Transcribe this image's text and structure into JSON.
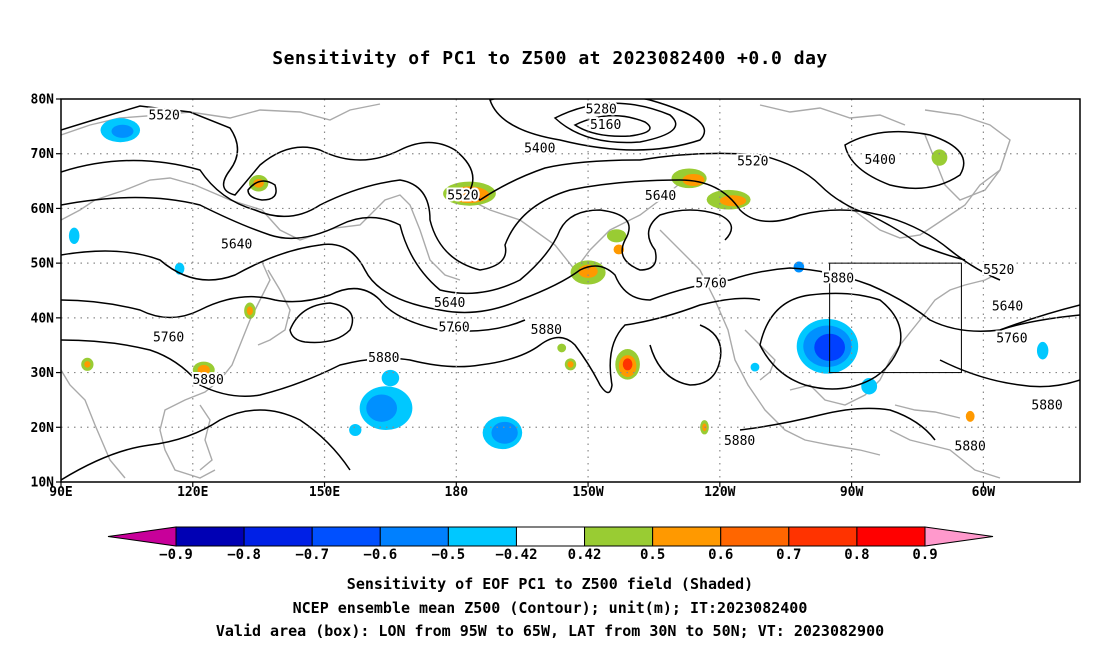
{
  "title": "Sensitivity of PC1 to Z500 at 2023082400 +0.0 day",
  "footer": {
    "line1": "Sensitivity of EOF PC1 to Z500 field (Shaded)",
    "line2": "NCEP ensemble mean Z500 (Contour); unit(m); IT:2023082400",
    "line3": "Valid area (box): LON from 95W to 65W, LAT from 30N to 50N; VT: 2023082900"
  },
  "map": {
    "lat_labels": [
      "80N",
      "70N",
      "60N",
      "50N",
      "40N",
      "30N",
      "20N",
      "10N"
    ],
    "lon_labels": [
      "90E",
      "120E",
      "150E",
      "180",
      "150W",
      "120W",
      "90W",
      "60W"
    ],
    "lon_range": [
      90,
      322
    ],
    "lat_range": [
      10,
      80
    ],
    "valid_box": {
      "lon_from": "95W",
      "lon_to": "65W",
      "lat_from": "30N",
      "lat_to": "50N"
    },
    "contour_labels": [
      {
        "text": "5520",
        "lon": 113.5,
        "lat": 77.1
      },
      {
        "text": "5280",
        "lon": 213,
        "lat": 78.2
      },
      {
        "text": "5160",
        "lon": 214,
        "lat": 75.3
      },
      {
        "text": "5400",
        "lon": 199,
        "lat": 71.0
      },
      {
        "text": "5520",
        "lon": 247.5,
        "lat": 68.7
      },
      {
        "text": "5400",
        "lon": 276.5,
        "lat": 68.9
      },
      {
        "text": "5520",
        "lon": 181.5,
        "lat": 62.5
      },
      {
        "text": "5640",
        "lon": 226.5,
        "lat": 62.4
      },
      {
        "text": "5640",
        "lon": 130,
        "lat": 53.5
      },
      {
        "text": "5880",
        "lon": 267,
        "lat": 47.3
      },
      {
        "text": "5520",
        "lon": 303.5,
        "lat": 48.8
      },
      {
        "text": "5640",
        "lon": 305.5,
        "lat": 42.2
      },
      {
        "text": "5760",
        "lon": 238,
        "lat": 46.4
      },
      {
        "text": "5640",
        "lon": 178.5,
        "lat": 42.8
      },
      {
        "text": "5760",
        "lon": 179.5,
        "lat": 38.3
      },
      {
        "text": "5880",
        "lon": 200.5,
        "lat": 37.9
      },
      {
        "text": "5760",
        "lon": 306.5,
        "lat": 36.3
      },
      {
        "text": "5760",
        "lon": 114.5,
        "lat": 36.5
      },
      {
        "text": "5880",
        "lon": 163.5,
        "lat": 32.8
      },
      {
        "text": "5880",
        "lon": 123.5,
        "lat": 28.7
      },
      {
        "text": "5880",
        "lon": 314.5,
        "lat": 24.1
      },
      {
        "text": "5880",
        "lon": 244.5,
        "lat": 17.6
      },
      {
        "text": "5880",
        "lon": 297,
        "lat": 16.6
      }
    ],
    "shaded_patches": [
      {
        "lon": 103.5,
        "lat": 74.3,
        "rx": 4.5,
        "ry": 2.2,
        "color": "#00c8ff"
      },
      {
        "lon": 104,
        "lat": 74.1,
        "rx": 2.5,
        "ry": 1.2,
        "color": "#0090ff"
      },
      {
        "lon": 135,
        "lat": 64.6,
        "rx": 2.2,
        "ry": 1.5,
        "color": "#99cc33"
      },
      {
        "lon": 135,
        "lat": 64.6,
        "rx": 1.2,
        "ry": 0.8,
        "color": "#ff9900"
      },
      {
        "lon": 183,
        "lat": 62.7,
        "rx": 6,
        "ry": 2.2,
        "color": "#99cc33"
      },
      {
        "lon": 183,
        "lat": 62.5,
        "rx": 4.5,
        "ry": 1.5,
        "color": "#ff9900"
      },
      {
        "lon": 183.5,
        "lat": 62.1,
        "rx": 2,
        "ry": 0.9,
        "color": "#ff6600"
      },
      {
        "lon": 233,
        "lat": 65.5,
        "rx": 4,
        "ry": 1.8,
        "color": "#99cc33"
      },
      {
        "lon": 234,
        "lat": 65.2,
        "rx": 2.5,
        "ry": 1.1,
        "color": "#ff9900"
      },
      {
        "lon": 242,
        "lat": 61.6,
        "rx": 5,
        "ry": 1.8,
        "color": "#99cc33"
      },
      {
        "lon": 243,
        "lat": 61.4,
        "rx": 3,
        "ry": 1.0,
        "color": "#ff9900"
      },
      {
        "lon": 290,
        "lat": 69.3,
        "rx": 1.8,
        "ry": 1.5,
        "color": "#99cc33"
      },
      {
        "lon": 210,
        "lat": 48.3,
        "rx": 4,
        "ry": 2.2,
        "color": "#99cc33"
      },
      {
        "lon": 210,
        "lat": 48.5,
        "rx": 2.2,
        "ry": 1.2,
        "color": "#ff9900"
      },
      {
        "lon": 216.5,
        "lat": 55,
        "rx": 2.2,
        "ry": 1.2,
        "color": "#99cc33"
      },
      {
        "lon": 219,
        "lat": 31.5,
        "rx": 2.8,
        "ry": 2.8,
        "color": "#99cc33"
      },
      {
        "lon": 219,
        "lat": 31.2,
        "rx": 2.0,
        "ry": 2.0,
        "color": "#ff9900"
      },
      {
        "lon": 219,
        "lat": 31.5,
        "rx": 1.1,
        "ry": 1.1,
        "color": "#ff3300"
      },
      {
        "lon": 264.5,
        "lat": 34.8,
        "rx": 7,
        "ry": 5,
        "color": "#00c8ff"
      },
      {
        "lon": 264.5,
        "lat": 34.8,
        "rx": 5.5,
        "ry": 3.8,
        "color": "#0090ff"
      },
      {
        "lon": 265,
        "lat": 34.6,
        "rx": 3.5,
        "ry": 2.5,
        "color": "#0040ff"
      },
      {
        "lon": 164,
        "lat": 23.5,
        "rx": 6,
        "ry": 4,
        "color": "#00c8ff"
      },
      {
        "lon": 163,
        "lat": 23.5,
        "rx": 3.5,
        "ry": 2.5,
        "color": "#0090ff"
      },
      {
        "lon": 190.5,
        "lat": 19,
        "rx": 4.5,
        "ry": 3,
        "color": "#00c8ff"
      },
      {
        "lon": 191,
        "lat": 19,
        "rx": 3,
        "ry": 2,
        "color": "#0090ff"
      },
      {
        "lon": 122.5,
        "lat": 30.5,
        "rx": 2.5,
        "ry": 1.5,
        "color": "#99cc33"
      },
      {
        "lon": 122.5,
        "lat": 30.5,
        "rx": 1.4,
        "ry": 0.9,
        "color": "#ff9900"
      },
      {
        "lon": 117,
        "lat": 49,
        "rx": 1.1,
        "ry": 1.1,
        "color": "#00c8ff"
      },
      {
        "lon": 96,
        "lat": 31.5,
        "rx": 1.4,
        "ry": 1.2,
        "color": "#99cc33"
      },
      {
        "lon": 96,
        "lat": 31.5,
        "rx": 0.7,
        "ry": 0.6,
        "color": "#ff9900"
      },
      {
        "lon": 133,
        "lat": 41.3,
        "rx": 1.3,
        "ry": 1.5,
        "color": "#99cc33"
      },
      {
        "lon": 133,
        "lat": 41.3,
        "rx": 0.7,
        "ry": 0.8,
        "color": "#ff9900"
      },
      {
        "lon": 217,
        "lat": 52.5,
        "rx": 1.2,
        "ry": 0.9,
        "color": "#ff9900"
      },
      {
        "lon": 206,
        "lat": 31.5,
        "rx": 1.3,
        "ry": 1.1,
        "color": "#99cc33"
      },
      {
        "lon": 206,
        "lat": 31.5,
        "rx": 0.7,
        "ry": 0.6,
        "color": "#ff9900"
      },
      {
        "lon": 204,
        "lat": 34.5,
        "rx": 1.0,
        "ry": 0.8,
        "color": "#99cc33"
      },
      {
        "lon": 297,
        "lat": 22,
        "rx": 1.0,
        "ry": 1.0,
        "color": "#ff9900"
      },
      {
        "lon": 258,
        "lat": 49.3,
        "rx": 1.2,
        "ry": 1.0,
        "color": "#0090ff"
      },
      {
        "lon": 274,
        "lat": 27.5,
        "rx": 1.8,
        "ry": 1.5,
        "color": "#00c8ff"
      },
      {
        "lon": 313.5,
        "lat": 34,
        "rx": 1.3,
        "ry": 1.6,
        "color": "#00c8ff"
      },
      {
        "lon": 165,
        "lat": 29,
        "rx": 2,
        "ry": 1.5,
        "color": "#00c8ff"
      },
      {
        "lon": 157,
        "lat": 19.5,
        "rx": 1.4,
        "ry": 1.1,
        "color": "#00c8ff"
      },
      {
        "lon": 93,
        "lat": 55,
        "rx": 1.2,
        "ry": 1.5,
        "color": "#00c8ff"
      },
      {
        "lon": 236.5,
        "lat": 20,
        "rx": 1.0,
        "ry": 1.3,
        "color": "#99cc33"
      },
      {
        "lon": 236.5,
        "lat": 20,
        "rx": 0.5,
        "ry": 0.7,
        "color": "#ff9900"
      },
      {
        "lon": 248,
        "lat": 31,
        "rx": 1.0,
        "ry": 0.8,
        "color": "#00c8ff"
      }
    ]
  },
  "colorbar": {
    "colors": [
      "#c8009a",
      "#0000b4",
      "#0020e6",
      "#0050ff",
      "#0080ff",
      "#00c8ff",
      "#ffffff",
      "#99cc33",
      "#ff9900",
      "#ff6600",
      "#ff3300",
      "#ff0000",
      "#ff99cc"
    ],
    "labels": [
      "−0.9",
      "−0.8",
      "−0.7",
      "−0.6",
      "−0.5",
      "−0.42",
      "0.42",
      "0.5",
      "0.6",
      "0.7",
      "0.8",
      "0.9"
    ]
  }
}
